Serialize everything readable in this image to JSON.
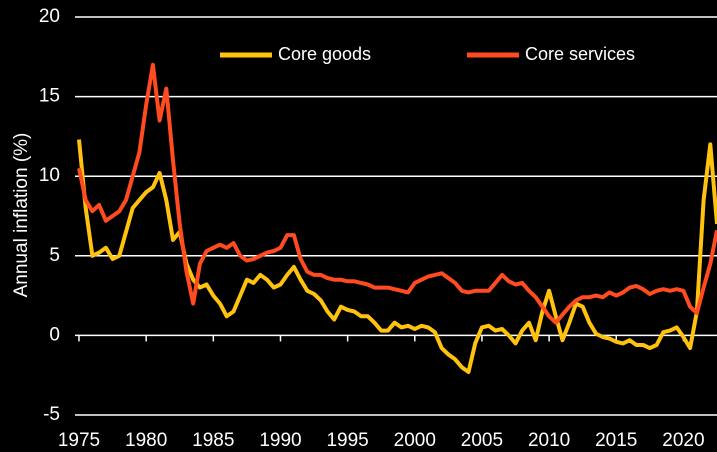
{
  "chart_data": {
    "type": "line",
    "y_label": "Annual inflation (%)",
    "x": [
      1975.0,
      1975.5,
      1976.0,
      1976.5,
      1977.0,
      1977.5,
      1978.0,
      1978.5,
      1979.0,
      1979.5,
      1980.0,
      1980.5,
      1981.0,
      1981.5,
      1982.0,
      1982.5,
      1983.0,
      1983.5,
      1984.0,
      1984.5,
      1985.0,
      1985.5,
      1986.0,
      1986.5,
      1987.0,
      1987.5,
      1988.0,
      1988.5,
      1989.0,
      1989.5,
      1990.0,
      1990.5,
      1991.0,
      1991.5,
      1992.0,
      1992.5,
      1993.0,
      1993.5,
      1994.0,
      1994.5,
      1995.0,
      1995.5,
      1996.0,
      1996.5,
      1997.0,
      1997.5,
      1998.0,
      1998.5,
      1999.0,
      1999.5,
      2000.0,
      2000.5,
      2001.0,
      2001.5,
      2002.0,
      2002.5,
      2003.0,
      2003.5,
      2004.0,
      2004.5,
      2005.0,
      2005.5,
      2006.0,
      2006.5,
      2007.0,
      2007.5,
      2008.0,
      2008.5,
      2009.0,
      2009.5,
      2010.0,
      2010.5,
      2011.0,
      2011.5,
      2012.0,
      2012.5,
      2013.0,
      2013.5,
      2014.0,
      2014.5,
      2015.0,
      2015.5,
      2016.0,
      2016.5,
      2017.0,
      2017.5,
      2018.0,
      2018.5,
      2019.0,
      2019.5,
      2020.0,
      2020.5,
      2021.0,
      2021.5,
      2022.0,
      2022.5
    ],
    "series": [
      {
        "name": "Core goods",
        "color": "#ffc20e",
        "values": [
          12.3,
          8,
          5,
          5.2,
          5.5,
          4.8,
          5,
          6.5,
          8,
          8.5,
          9,
          9.3,
          10.2,
          8.5,
          6,
          6.5,
          4.5,
          3.5,
          3,
          3.2,
          2.5,
          2,
          1.2,
          1.5,
          2.5,
          3.5,
          3.3,
          3.8,
          3.5,
          3,
          3.2,
          3.8,
          4.3,
          3.5,
          2.8,
          2.6,
          2.2,
          1.5,
          1,
          1.8,
          1.6,
          1.5,
          1.2,
          1.2,
          0.8,
          0.3,
          0.3,
          0.8,
          0.5,
          0.6,
          0.4,
          0.6,
          0.5,
          0.2,
          -0.8,
          -1.2,
          -1.5,
          -2,
          -2.3,
          -0.5,
          0.5,
          0.6,
          0.3,
          0.4,
          0,
          -0.5,
          0.3,
          0.8,
          -0.3,
          1.5,
          2.8,
          1.2,
          -0.3,
          0.8,
          2,
          1.8,
          0.8,
          0.1,
          -0.1,
          -0.2,
          -0.4,
          -0.5,
          -0.3,
          -0.6,
          -0.6,
          -0.8,
          -0.6,
          0.2,
          0.3,
          0.5,
          -0.1,
          -0.8,
          1.5,
          8.5,
          12,
          7
        ]
      },
      {
        "name": "Core services",
        "color": "#ff4b1f",
        "values": [
          10.5,
          8.5,
          7.8,
          8.2,
          7.2,
          7.5,
          7.8,
          8.5,
          10,
          11.5,
          14.5,
          17,
          13.5,
          15.5,
          11,
          7,
          4,
          2,
          4.5,
          5.3,
          5.5,
          5.7,
          5.5,
          5.8,
          5,
          4.7,
          4.8,
          5,
          5.2,
          5.3,
          5.5,
          6.3,
          6.3,
          4.8,
          4,
          3.8,
          3.8,
          3.6,
          3.5,
          3.5,
          3.4,
          3.4,
          3.3,
          3.2,
          3,
          3,
          3,
          2.9,
          2.8,
          2.7,
          3.3,
          3.5,
          3.7,
          3.8,
          3.9,
          3.6,
          3.3,
          2.8,
          2.7,
          2.8,
          2.8,
          2.8,
          3.3,
          3.8,
          3.4,
          3.2,
          3.3,
          2.8,
          2.4,
          1.8,
          1.2,
          0.8,
          1.3,
          1.8,
          2.2,
          2.4,
          2.4,
          2.5,
          2.4,
          2.7,
          2.5,
          2.7,
          3,
          3.1,
          2.9,
          2.6,
          2.8,
          2.9,
          2.8,
          2.9,
          2.8,
          1.8,
          1.4,
          3,
          4.5,
          6.6
        ]
      }
    ],
    "xlim": [
      1975,
      2022.5
    ],
    "xticks": [
      1975,
      1980,
      1985,
      1990,
      1995,
      2000,
      2005,
      2010,
      2015,
      2020
    ],
    "ylim": [
      -5,
      20
    ],
    "yticks": [
      -5,
      0,
      5,
      10,
      15,
      20
    ],
    "grid": true,
    "legend": "top"
  }
}
